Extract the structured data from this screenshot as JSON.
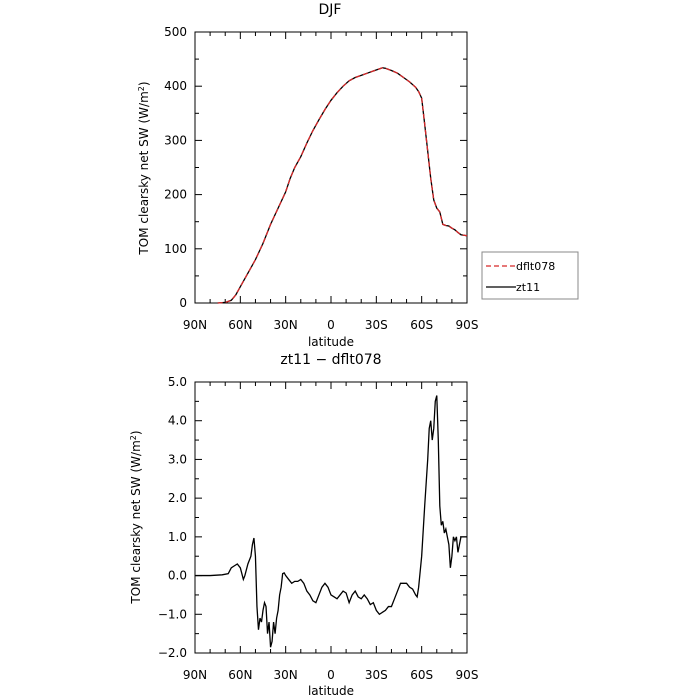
{
  "chart_data": [
    {
      "type": "line",
      "title": "DJF",
      "xlabel": "latitude",
      "ylabel": "TOM clearsky net SW (W/m²)",
      "xlim": [
        90,
        -90
      ],
      "ylim": [
        0,
        500
      ],
      "x_ticks": [
        90,
        60,
        30,
        0,
        -30,
        -60,
        -90
      ],
      "x_tick_labels": [
        "90N",
        "60N",
        "30N",
        "0",
        "30S",
        "60S",
        "90S"
      ],
      "y_ticks": [
        0,
        100,
        200,
        300,
        400,
        500
      ],
      "y_tick_labels": [
        "0",
        "100",
        "200",
        "300",
        "400",
        "500"
      ],
      "grid": false,
      "legend": "right",
      "series": [
        {
          "name": "dflt078",
          "color": "#d62728",
          "dash": true,
          "points": [
            [
              75,
              0
            ],
            [
              70,
              1
            ],
            [
              66,
              5
            ],
            [
              63,
              15
            ],
            [
              60,
              30
            ],
            [
              55,
              55
            ],
            [
              50,
              80
            ],
            [
              45,
              110
            ],
            [
              40,
              145
            ],
            [
              35,
              175
            ],
            [
              30,
              205
            ],
            [
              27,
              230
            ],
            [
              24,
              250
            ],
            [
              20,
              270
            ],
            [
              16,
              295
            ],
            [
              12,
              318
            ],
            [
              8,
              338
            ],
            [
              4,
              357
            ],
            [
              0,
              374
            ],
            [
              -4,
              388
            ],
            [
              -8,
              400
            ],
            [
              -12,
              410
            ],
            [
              -16,
              416
            ],
            [
              -20,
              420
            ],
            [
              -24,
              424
            ],
            [
              -28,
              428
            ],
            [
              -32,
              432
            ],
            [
              -34,
              434
            ],
            [
              -36,
              433
            ],
            [
              -40,
              429
            ],
            [
              -44,
              424
            ],
            [
              -48,
              416
            ],
            [
              -52,
              408
            ],
            [
              -56,
              398
            ],
            [
              -58,
              390
            ],
            [
              -60,
              378
            ],
            [
              -62,
              330
            ],
            [
              -64,
              280
            ],
            [
              -66,
              230
            ],
            [
              -68,
              190
            ],
            [
              -70,
              175
            ],
            [
              -72,
              168
            ],
            [
              -74,
              145
            ],
            [
              -76,
              143
            ],
            [
              -78,
              142
            ],
            [
              -80,
              138
            ],
            [
              -82,
              135
            ],
            [
              -84,
              130
            ],
            [
              -86,
              126
            ],
            [
              -88,
              125
            ],
            [
              -90,
              124
            ]
          ]
        },
        {
          "name": "zt11",
          "color": "#000000",
          "dash": false,
          "points": [
            [
              75,
              0
            ],
            [
              70,
              1
            ],
            [
              66,
              5
            ],
            [
              63,
              15
            ],
            [
              60,
              30
            ],
            [
              55,
              55
            ],
            [
              50,
              80
            ],
            [
              45,
              110
            ],
            [
              40,
              145
            ],
            [
              35,
              175
            ],
            [
              30,
              205
            ],
            [
              27,
              230
            ],
            [
              24,
              250
            ],
            [
              20,
              270
            ],
            [
              16,
              295
            ],
            [
              12,
              318
            ],
            [
              8,
              338
            ],
            [
              4,
              357
            ],
            [
              0,
              374
            ],
            [
              -4,
              388
            ],
            [
              -8,
              400
            ],
            [
              -12,
              410
            ],
            [
              -16,
              416
            ],
            [
              -20,
              420
            ],
            [
              -24,
              424
            ],
            [
              -28,
              428
            ],
            [
              -32,
              432
            ],
            [
              -34,
              434
            ],
            [
              -36,
              433
            ],
            [
              -40,
              429
            ],
            [
              -44,
              424
            ],
            [
              -48,
              416
            ],
            [
              -52,
              408
            ],
            [
              -56,
              398
            ],
            [
              -58,
              390
            ],
            [
              -60,
              378
            ],
            [
              -62,
              330
            ],
            [
              -64,
              280
            ],
            [
              -66,
              230
            ],
            [
              -68,
              190
            ],
            [
              -70,
              175
            ],
            [
              -72,
              168
            ],
            [
              -74,
              145
            ],
            [
              -76,
              143
            ],
            [
              -78,
              142
            ],
            [
              -80,
              138
            ],
            [
              -82,
              135
            ],
            [
              -84,
              130
            ],
            [
              -86,
              126
            ],
            [
              -88,
              125
            ],
            [
              -90,
              124
            ]
          ]
        }
      ]
    },
    {
      "type": "line",
      "title": "zt11 − dflt078",
      "xlabel": "latitude",
      "ylabel": "TOM clearsky net SW (W/m²)",
      "xlim": [
        90,
        -90
      ],
      "ylim": [
        -2.0,
        5.0
      ],
      "x_ticks": [
        90,
        60,
        30,
        0,
        -30,
        -60,
        -90
      ],
      "x_tick_labels": [
        "90N",
        "60N",
        "30N",
        "0",
        "30S",
        "60S",
        "90S"
      ],
      "y_ticks": [
        -2,
        -1,
        0,
        1,
        2,
        3,
        4,
        5
      ],
      "y_tick_labels": [
        "−2.0",
        "−1.0",
        "0.0",
        "1.0",
        "2.0",
        "3.0",
        "4.0",
        "5.0"
      ],
      "grid": false,
      "series": [
        {
          "color": "#000000",
          "points": [
            [
              90,
              0
            ],
            [
              80,
              0
            ],
            [
              72,
              0.02
            ],
            [
              68,
              0.05
            ],
            [
              66,
              0.2
            ],
            [
              64,
              0.25
            ],
            [
              62,
              0.3
            ],
            [
              60,
              0.2
            ],
            [
              58,
              -0.1
            ],
            [
              57,
              0.0
            ],
            [
              55,
              0.3
            ],
            [
              53,
              0.5
            ],
            [
              52,
              0.8
            ],
            [
              51,
              0.97
            ],
            [
              50,
              0.5
            ],
            [
              49,
              -0.8
            ],
            [
              48,
              -1.4
            ],
            [
              47,
              -1.1
            ],
            [
              46,
              -1.2
            ],
            [
              45,
              -0.9
            ],
            [
              44,
              -0.7
            ],
            [
              43,
              -0.8
            ],
            [
              42,
              -1.5
            ],
            [
              41,
              -1.2
            ],
            [
              40,
              -1.85
            ],
            [
              39,
              -1.7
            ],
            [
              38,
              -1.2
            ],
            [
              37,
              -1.5
            ],
            [
              36,
              -1.1
            ],
            [
              35,
              -0.9
            ],
            [
              34,
              -0.5
            ],
            [
              33,
              -0.3
            ],
            [
              32,
              0.05
            ],
            [
              31,
              0.07
            ],
            [
              30,
              0.0
            ],
            [
              28,
              -0.1
            ],
            [
              26,
              -0.2
            ],
            [
              24,
              -0.15
            ],
            [
              22,
              -0.15
            ],
            [
              20,
              -0.1
            ],
            [
              18,
              -0.2
            ],
            [
              16,
              -0.4
            ],
            [
              14,
              -0.5
            ],
            [
              12,
              -0.65
            ],
            [
              10,
              -0.7
            ],
            [
              8,
              -0.5
            ],
            [
              6,
              -0.3
            ],
            [
              4,
              -0.2
            ],
            [
              2,
              -0.3
            ],
            [
              0,
              -0.5
            ],
            [
              -2,
              -0.55
            ],
            [
              -4,
              -0.6
            ],
            [
              -6,
              -0.5
            ],
            [
              -8,
              -0.4
            ],
            [
              -10,
              -0.45
            ],
            [
              -12,
              -0.7
            ],
            [
              -14,
              -0.5
            ],
            [
              -16,
              -0.4
            ],
            [
              -18,
              -0.55
            ],
            [
              -20,
              -0.6
            ],
            [
              -22,
              -0.5
            ],
            [
              -24,
              -0.6
            ],
            [
              -26,
              -0.75
            ],
            [
              -28,
              -0.7
            ],
            [
              -30,
              -0.9
            ],
            [
              -32,
              -1.0
            ],
            [
              -34,
              -0.95
            ],
            [
              -36,
              -0.9
            ],
            [
              -38,
              -0.8
            ],
            [
              -40,
              -0.8
            ],
            [
              -42,
              -0.6
            ],
            [
              -44,
              -0.4
            ],
            [
              -46,
              -0.2
            ],
            [
              -48,
              -0.2
            ],
            [
              -50,
              -0.2
            ],
            [
              -52,
              -0.3
            ],
            [
              -54,
              -0.35
            ],
            [
              -56,
              -0.5
            ],
            [
              -57,
              -0.55
            ],
            [
              -58,
              -0.3
            ],
            [
              -60,
              0.5
            ],
            [
              -62,
              1.8
            ],
            [
              -64,
              3.0
            ],
            [
              -65,
              3.8
            ],
            [
              -66,
              4.0
            ],
            [
              -67,
              3.5
            ],
            [
              -68,
              3.8
            ],
            [
              -69,
              4.5
            ],
            [
              -70,
              4.65
            ],
            [
              -71,
              3.5
            ],
            [
              -72,
              1.8
            ],
            [
              -73,
              1.3
            ],
            [
              -74,
              1.4
            ],
            [
              -75,
              1.1
            ],
            [
              -76,
              1.2
            ],
            [
              -77,
              1.0
            ],
            [
              -78,
              0.8
            ],
            [
              -79,
              0.2
            ],
            [
              -80,
              0.5
            ],
            [
              -81,
              1.0
            ],
            [
              -82,
              0.9
            ],
            [
              -83,
              1.0
            ],
            [
              -84,
              0.6
            ],
            [
              -85,
              0.8
            ],
            [
              -86,
              1.0
            ],
            [
              -88,
              1.0
            ],
            [
              -90,
              1.0
            ]
          ]
        }
      ]
    }
  ]
}
